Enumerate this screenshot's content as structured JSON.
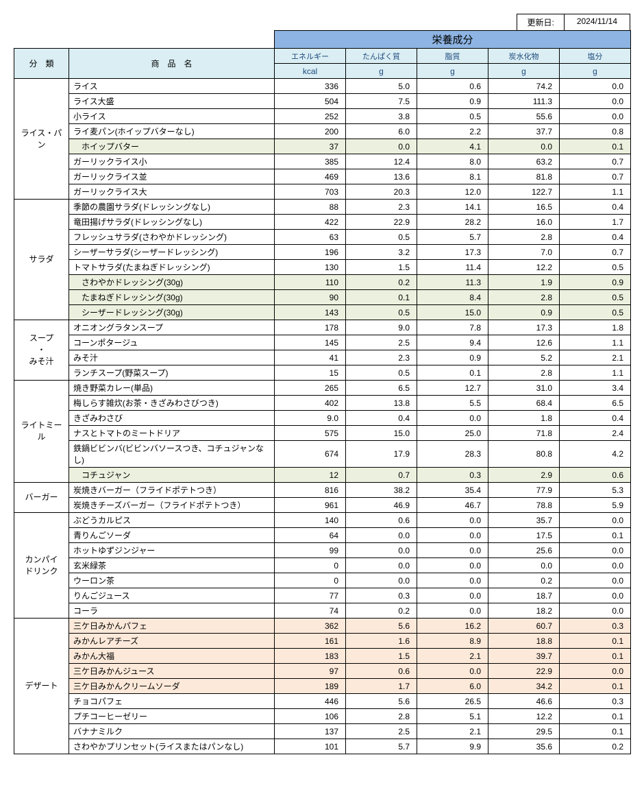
{
  "colors": {
    "header_main_bg": "#8db4e2",
    "header_sub_bg": "#daeef3",
    "header_text": "#1f497d",
    "hl_green": "#ebf1de",
    "hl_orange": "#fde9d9",
    "border": "#000000",
    "body_bg": "#ffffff"
  },
  "update_label": "更新日:",
  "update_value": "2024/11/14",
  "header": {
    "nutrition_title": "栄養成分",
    "category": "分　類",
    "product": "商　品　名",
    "cols": [
      "エネルギー",
      "たんぱく質",
      "脂質",
      "炭水化物",
      "塩分"
    ],
    "units": [
      "kcal",
      "g",
      "g",
      "g",
      "g"
    ]
  },
  "groups": [
    {
      "category": "ライス・パン",
      "rows": [
        {
          "name": "ライス",
          "v": [
            "336",
            "5.0",
            "0.6",
            "74.2",
            "0.0"
          ]
        },
        {
          "name": "ライス大盛",
          "v": [
            "504",
            "7.5",
            "0.9",
            "111.3",
            "0.0"
          ]
        },
        {
          "name": "小ライス",
          "v": [
            "252",
            "3.8",
            "0.5",
            "55.6",
            "0.0"
          ]
        },
        {
          "name": "ライ麦パン(ホイップバターなし)",
          "v": [
            "200",
            "6.0",
            "2.2",
            "37.7",
            "0.8"
          ]
        },
        {
          "name": "ホイップバター",
          "v": [
            "37",
            "0.0",
            "4.1",
            "0.0",
            "0.1"
          ],
          "hl": "green",
          "indent": true
        },
        {
          "name": "ガーリックライス小",
          "v": [
            "385",
            "12.4",
            "8.0",
            "63.2",
            "0.7"
          ]
        },
        {
          "name": "ガーリックライス並",
          "v": [
            "469",
            "13.6",
            "8.1",
            "81.8",
            "0.7"
          ]
        },
        {
          "name": "ガーリックライス大",
          "v": [
            "703",
            "20.3",
            "12.0",
            "122.7",
            "1.1"
          ]
        }
      ]
    },
    {
      "category": "サラダ",
      "rows": [
        {
          "name": "季節の農園サラダ(ドレッシングなし)",
          "v": [
            "88",
            "2.3",
            "14.1",
            "16.5",
            "0.4"
          ]
        },
        {
          "name": "竜田揚げサラダ(ドレッシングなし)",
          "v": [
            "422",
            "22.9",
            "28.2",
            "16.0",
            "1.7"
          ]
        },
        {
          "name": "フレッシュサラダ(さわやかドレッシング)",
          "v": [
            "63",
            "0.5",
            "5.7",
            "2.8",
            "0.4"
          ]
        },
        {
          "name": "シーザーサラダ(シーザードレッシング)",
          "v": [
            "196",
            "3.2",
            "17.3",
            "7.0",
            "0.7"
          ]
        },
        {
          "name": "トマトサラダ(たまねぎドレッシング)",
          "v": [
            "130",
            "1.5",
            "11.4",
            "12.2",
            "0.5"
          ]
        },
        {
          "name": "さわやかドレッシング(30g)",
          "v": [
            "110",
            "0.2",
            "11.3",
            "1.9",
            "0.9"
          ],
          "hl": "green",
          "indent": true
        },
        {
          "name": "たまねぎドレッシング(30g)",
          "v": [
            "90",
            "0.1",
            "8.4",
            "2.8",
            "0.5"
          ],
          "hl": "green",
          "indent": true
        },
        {
          "name": "シーザードレッシング(30g)",
          "v": [
            "143",
            "0.5",
            "15.0",
            "0.9",
            "0.5"
          ],
          "hl": "green",
          "indent": true
        }
      ]
    },
    {
      "category": "スープ\n・\nみそ汁",
      "rows": [
        {
          "name": "オニオングラタンスープ",
          "v": [
            "178",
            "9.0",
            "7.8",
            "17.3",
            "1.8"
          ]
        },
        {
          "name": "コーンポタージュ",
          "v": [
            "145",
            "2.5",
            "9.4",
            "12.6",
            "1.1"
          ]
        },
        {
          "name": "みそ汁",
          "v": [
            "41",
            "2.3",
            "0.9",
            "5.2",
            "2.1"
          ]
        },
        {
          "name": "ランチスープ(野菜スープ)",
          "v": [
            "15",
            "0.5",
            "0.1",
            "2.8",
            "1.1"
          ]
        }
      ]
    },
    {
      "category": "ライトミール",
      "rows": [
        {
          "name": "焼き野菜カレー(単品)",
          "v": [
            "265",
            "6.5",
            "12.7",
            "31.0",
            "3.4"
          ]
        },
        {
          "name": "梅しらす雑炊(お茶・きざみわさびつき)",
          "v": [
            "402",
            "13.8",
            "5.5",
            "68.4",
            "6.5"
          ]
        },
        {
          "name": "きざみわさび",
          "v": [
            "9.0",
            "0.4",
            "0.0",
            "1.8",
            "0.4"
          ]
        },
        {
          "name": "ナスとトマトのミートドリア",
          "v": [
            "575",
            "15.0",
            "25.0",
            "71.8",
            "2.4"
          ]
        },
        {
          "name": "鉄鍋ビビンバ(ビビンバソースつき、コチュジャンなし)",
          "v": [
            "674",
            "17.9",
            "28.3",
            "80.8",
            "4.2"
          ]
        },
        {
          "name": "コチュジャン",
          "v": [
            "12",
            "0.7",
            "0.3",
            "2.9",
            "0.6"
          ],
          "hl": "green",
          "indent": true
        }
      ]
    },
    {
      "category": "バーガー",
      "rows": [
        {
          "name": "炭焼きバーガー（フライドポテトつき）",
          "v": [
            "816",
            "38.2",
            "35.4",
            "77.9",
            "5.3"
          ]
        },
        {
          "name": "炭焼きチーズバーガー（フライドポテトつき）",
          "v": [
            "961",
            "46.9",
            "46.7",
            "78.8",
            "5.9"
          ]
        }
      ]
    },
    {
      "category": "カンパイ\nドリンク",
      "rows": [
        {
          "name": "ぶどうカルピス",
          "v": [
            "140",
            "0.6",
            "0.0",
            "35.7",
            "0.0"
          ]
        },
        {
          "name": "青りんごソーダ",
          "v": [
            "64",
            "0.0",
            "0.0",
            "17.5",
            "0.1"
          ]
        },
        {
          "name": "ホットゆずジンジャー",
          "v": [
            "99",
            "0.0",
            "0.0",
            "25.6",
            "0.0"
          ]
        },
        {
          "name": "玄米緑茶",
          "v": [
            "0",
            "0.0",
            "0.0",
            "0.0",
            "0.0"
          ]
        },
        {
          "name": "ウーロン茶",
          "v": [
            "0",
            "0.0",
            "0.0",
            "0.2",
            "0.0"
          ]
        },
        {
          "name": "りんごジュース",
          "v": [
            "77",
            "0.3",
            "0.0",
            "18.7",
            "0.0"
          ]
        },
        {
          "name": "コーラ",
          "v": [
            "74",
            "0.2",
            "0.0",
            "18.2",
            "0.0"
          ]
        }
      ]
    },
    {
      "category": "デザート",
      "rows": [
        {
          "name": "三ケ日みかんパフェ",
          "v": [
            "362",
            "5.6",
            "16.2",
            "60.7",
            "0.3"
          ],
          "hl": "orange"
        },
        {
          "name": "みかんレアチーズ",
          "v": [
            "161",
            "1.6",
            "8.9",
            "18.8",
            "0.1"
          ],
          "hl": "orange"
        },
        {
          "name": "みかん大福",
          "v": [
            "183",
            "1.5",
            "2.1",
            "39.7",
            "0.1"
          ],
          "hl": "orange"
        },
        {
          "name": "三ケ日みかんジュース",
          "v": [
            "97",
            "0.6",
            "0.0",
            "22.9",
            "0.0"
          ],
          "hl": "orange"
        },
        {
          "name": "三ケ日みかんクリームソーダ",
          "v": [
            "189",
            "1.7",
            "6.0",
            "34.2",
            "0.1"
          ],
          "hl": "orange"
        },
        {
          "name": "チョコパフェ",
          "v": [
            "446",
            "5.6",
            "26.5",
            "46.6",
            "0.3"
          ]
        },
        {
          "name": "プチコーヒーゼリー",
          "v": [
            "106",
            "2.8",
            "5.1",
            "12.2",
            "0.1"
          ]
        },
        {
          "name": "バナナミルク",
          "v": [
            "137",
            "2.5",
            "2.1",
            "29.5",
            "0.1"
          ]
        },
        {
          "name": "さわやかプリンセット(ライスまたはパンなし)",
          "v": [
            "101",
            "5.7",
            "9.9",
            "35.6",
            "0.2"
          ]
        }
      ]
    }
  ]
}
